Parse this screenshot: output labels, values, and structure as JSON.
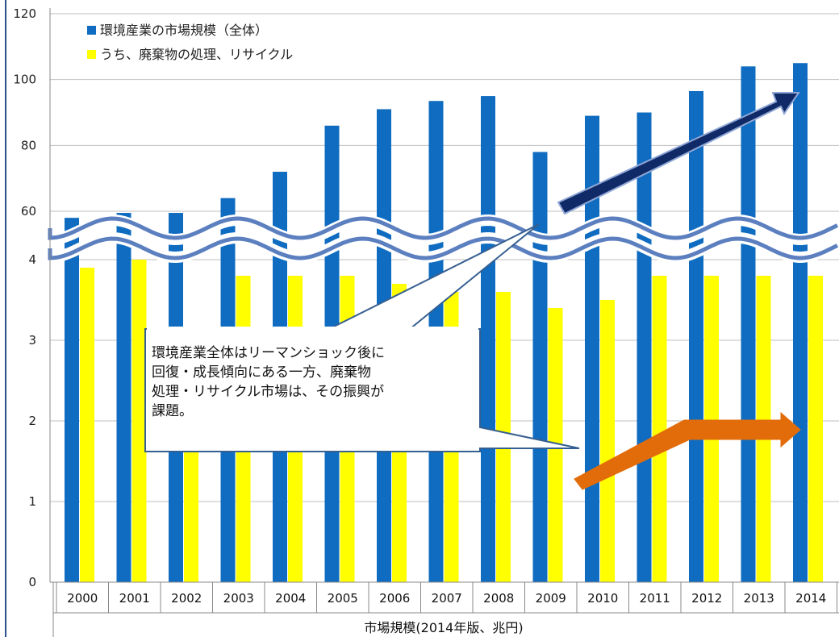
{
  "chart_data": {
    "type": "bar",
    "categories": [
      "2000",
      "2001",
      "2002",
      "2003",
      "2004",
      "2005",
      "2006",
      "2007",
      "2008",
      "2009",
      "2010",
      "2011",
      "2012",
      "2013",
      "2014"
    ],
    "series": [
      {
        "name": "環境産業の市場規模（全体）",
        "color": "#0f6cc0",
        "values": [
          58,
          59.5,
          59.5,
          64,
          72,
          86,
          91,
          93.5,
          95,
          78,
          89,
          90,
          96.5,
          104,
          105
        ]
      },
      {
        "name": "うち、廃棄物の処理、リサイクル",
        "color": "#ffff00",
        "values": [
          3.9,
          4.0,
          4.1,
          3.8,
          3.8,
          3.8,
          3.7,
          3.6,
          3.6,
          3.4,
          3.5,
          3.8,
          3.8,
          3.8,
          3.8
        ]
      }
    ],
    "y_ticks_lower": [
      "0",
      "1",
      "2",
      "3",
      "4"
    ],
    "y_ticks_upper": [
      "60",
      "80",
      "100",
      "120"
    ],
    "axis_break": true,
    "xlabel": "市場規模(2014年版、兆円)",
    "legend_position": "top-left",
    "annotation": "環境産業全体はリーマンショック後に\n回復・成長傾向にある一方、廃棄物\n処理・リサイクル市場は、その振興が\n課題。",
    "trend_arrows": [
      {
        "name": "overall-growth-arrow",
        "color": "#0f2a66"
      },
      {
        "name": "recycling-trend-arrow",
        "color": "#e36c0a"
      }
    ]
  }
}
